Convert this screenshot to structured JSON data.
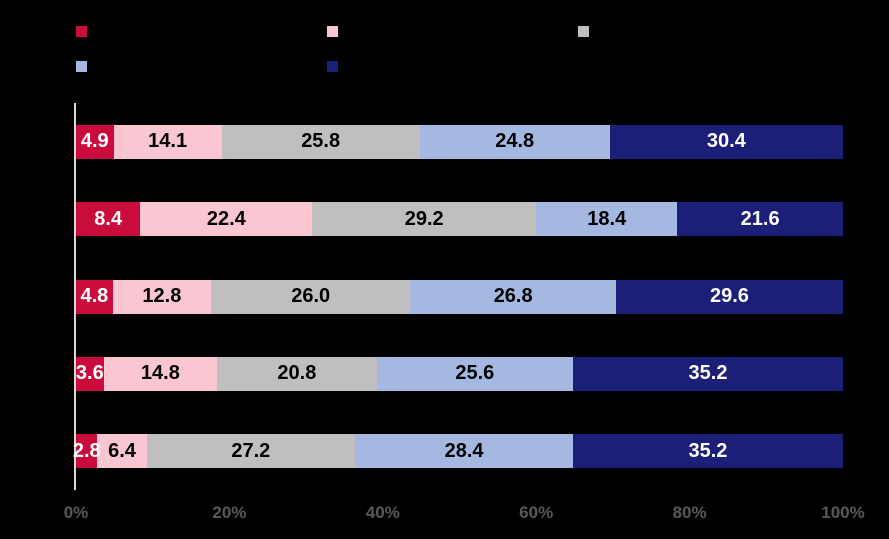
{
  "chart_data": {
    "type": "bar",
    "variant": "horizontal-stacked",
    "title": "",
    "background": "#000000",
    "categories": [
      "",
      "",
      "",
      "",
      ""
    ],
    "series": [
      {
        "name": "",
        "color": "#C90C3C",
        "label_color": "#FFFFFF",
        "values": [
          4.9,
          8.4,
          4.8,
          3.6,
          2.8
        ]
      },
      {
        "name": "",
        "color": "#F9C6D2",
        "label_color": "#000000",
        "values": [
          14.1,
          22.4,
          12.8,
          14.8,
          6.4
        ]
      },
      {
        "name": "",
        "color": "#BFBFBF",
        "label_color": "#000000",
        "values": [
          25.8,
          29.2,
          26.0,
          20.8,
          27.2
        ]
      },
      {
        "name": "",
        "color": "#A5B8E1",
        "label_color": "#000000",
        "values": [
          24.8,
          18.4,
          26.8,
          25.6,
          28.4
        ]
      },
      {
        "name": "",
        "color": "#1B1F77",
        "label_color": "#FFFFFF",
        "values": [
          30.4,
          21.6,
          29.6,
          35.2,
          35.2
        ]
      }
    ],
    "value_labels": [
      [
        "4.9",
        "14.1",
        "25.8",
        "24.8",
        "30.4"
      ],
      [
        "8.4",
        "22.4",
        "29.2",
        "18.4",
        "21.6"
      ],
      [
        "4.8",
        "12.8",
        "26.0",
        "26.8",
        "29.6"
      ],
      [
        "3.6",
        "14.8",
        "20.8",
        "25.6",
        "35.2"
      ],
      [
        "2.8",
        "6.4",
        "27.2",
        "28.4",
        "35.2"
      ]
    ],
    "xlabel": "",
    "ylabel": "",
    "xlim": [
      0,
      100
    ],
    "x_ticks": [
      "0%",
      "20%",
      "40%",
      "60%",
      "80%",
      "100%"
    ],
    "grid": false,
    "legend_position": "top-left",
    "legend_rows": [
      3,
      2
    ]
  },
  "style": {
    "axis_line_color": "#D9D9D9",
    "tick_label_color": "#595959"
  }
}
